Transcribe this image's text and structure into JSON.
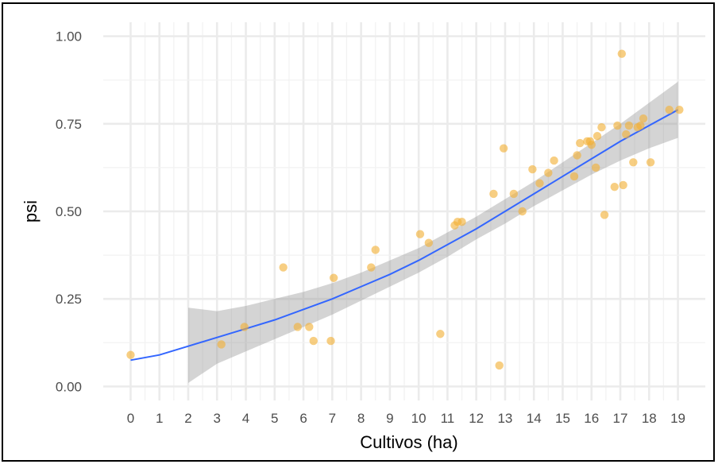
{
  "chart_data": {
    "type": "scatter",
    "title": "",
    "xlabel": "Cultivos (ha)",
    "ylabel": "psi",
    "xlim": [
      -0.95,
      19.95
    ],
    "ylim": [
      -0.04,
      1.04
    ],
    "x_ticks": [
      "0",
      "1",
      "2",
      "3",
      "4",
      "5",
      "6",
      "7",
      "8",
      "9",
      "10",
      "11",
      "12",
      "13",
      "14",
      "15",
      "16",
      "17",
      "18",
      "19"
    ],
    "y_ticks": [
      "0.00",
      "0.25",
      "0.50",
      "0.75",
      "1.00"
    ],
    "grid": true,
    "background": "#ffffff",
    "points": {
      "color": "#f2b035",
      "values": [
        [
          0.0,
          0.09
        ],
        [
          3.15,
          0.12
        ],
        [
          3.95,
          0.17
        ],
        [
          5.3,
          0.34
        ],
        [
          5.8,
          0.17
        ],
        [
          6.2,
          0.17
        ],
        [
          6.35,
          0.13
        ],
        [
          6.95,
          0.13
        ],
        [
          7.05,
          0.31
        ],
        [
          8.35,
          0.34
        ],
        [
          8.5,
          0.39
        ],
        [
          10.05,
          0.435
        ],
        [
          10.35,
          0.41
        ],
        [
          10.75,
          0.15
        ],
        [
          11.25,
          0.46
        ],
        [
          11.35,
          0.47
        ],
        [
          11.5,
          0.47
        ],
        [
          12.6,
          0.55
        ],
        [
          12.8,
          0.06
        ],
        [
          12.95,
          0.68
        ],
        [
          13.3,
          0.55
        ],
        [
          13.6,
          0.5
        ],
        [
          13.95,
          0.62
        ],
        [
          14.2,
          0.58
        ],
        [
          14.5,
          0.61
        ],
        [
          14.7,
          0.645
        ],
        [
          15.4,
          0.6
        ],
        [
          15.5,
          0.66
        ],
        [
          15.6,
          0.695
        ],
        [
          15.85,
          0.7
        ],
        [
          15.95,
          0.7
        ],
        [
          16.0,
          0.69
        ],
        [
          16.15,
          0.625
        ],
        [
          16.2,
          0.715
        ],
        [
          16.35,
          0.74
        ],
        [
          16.45,
          0.49
        ],
        [
          16.8,
          0.57
        ],
        [
          16.9,
          0.745
        ],
        [
          17.05,
          0.95
        ],
        [
          17.1,
          0.575
        ],
        [
          17.2,
          0.72
        ],
        [
          17.3,
          0.745
        ],
        [
          17.45,
          0.64
        ],
        [
          17.6,
          0.74
        ],
        [
          17.7,
          0.745
        ],
        [
          17.8,
          0.765
        ],
        [
          18.05,
          0.64
        ],
        [
          18.7,
          0.79
        ],
        [
          19.05,
          0.79
        ]
      ]
    },
    "trend": {
      "color": "#3366ff",
      "ribbon_color": "#999999",
      "x": [
        0,
        1,
        2,
        3,
        4,
        5,
        6,
        7,
        8,
        9,
        10,
        11,
        12,
        13,
        14,
        15,
        16,
        17,
        18,
        19
      ],
      "y": [
        0.075,
        0.09,
        0.115,
        0.14,
        0.165,
        0.19,
        0.22,
        0.25,
        0.285,
        0.32,
        0.36,
        0.405,
        0.45,
        0.5,
        0.55,
        0.6,
        0.65,
        0.7,
        0.745,
        0.79
      ],
      "lower": [
        null,
        null,
        0.01,
        0.065,
        0.1,
        0.135,
        0.17,
        0.205,
        0.245,
        0.285,
        0.325,
        0.37,
        0.42,
        0.465,
        0.515,
        0.56,
        0.605,
        0.645,
        0.68,
        0.71
      ],
      "upper": [
        null,
        null,
        0.225,
        0.215,
        0.23,
        0.25,
        0.27,
        0.295,
        0.325,
        0.36,
        0.395,
        0.44,
        0.485,
        0.535,
        0.585,
        0.64,
        0.695,
        0.75,
        0.81,
        0.87
      ]
    }
  }
}
